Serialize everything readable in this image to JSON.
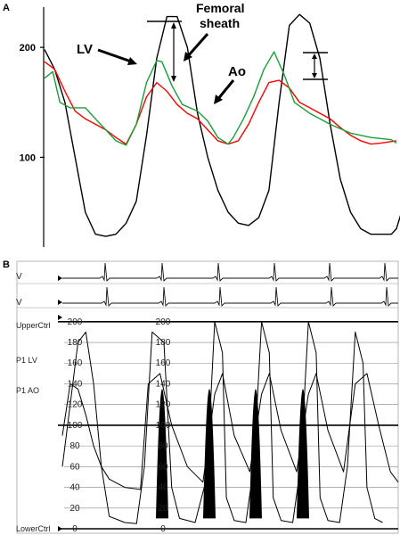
{
  "chart_data": [
    {
      "panel": "A",
      "type": "line",
      "yticks": [
        100,
        200
      ],
      "ylim": [
        20,
        235
      ],
      "series": [
        {
          "name": "LV",
          "color": "#000000",
          "values": [
            [
              0,
              198
            ],
            [
              10,
              180
            ],
            [
              20,
              150
            ],
            [
              30,
              100
            ],
            [
              40,
              50
            ],
            [
              50,
              30
            ],
            [
              60,
              28
            ],
            [
              70,
              30
            ],
            [
              80,
              40
            ],
            [
              90,
              60
            ],
            [
              100,
              120
            ],
            [
              110,
              190
            ],
            [
              120,
              228
            ],
            [
              130,
              228
            ],
            [
              140,
              200
            ],
            [
              150,
              140
            ],
            [
              160,
              100
            ],
            [
              170,
              70
            ],
            [
              180,
              50
            ],
            [
              190,
              40
            ],
            [
              200,
              38
            ],
            [
              210,
              45
            ],
            [
              220,
              70
            ],
            [
              230,
              150
            ],
            [
              240,
              220
            ],
            [
              250,
              230
            ],
            [
              260,
              222
            ],
            [
              270,
              190
            ],
            [
              280,
              130
            ],
            [
              290,
              80
            ],
            [
              300,
              50
            ],
            [
              310,
              35
            ],
            [
              320,
              30
            ],
            [
              330,
              30
            ],
            [
              340,
              30
            ],
            [
              345,
              35
            ],
            [
              350,
              50
            ]
          ]
        },
        {
          "name": "Ao",
          "color": "#ff0000",
          "values": [
            [
              0,
              187
            ],
            [
              10,
              180
            ],
            [
              20,
              160
            ],
            [
              30,
              142
            ],
            [
              40,
              135
            ],
            [
              50,
              130
            ],
            [
              60,
              125
            ],
            [
              70,
              118
            ],
            [
              80,
              112
            ],
            [
              90,
              130
            ],
            [
              100,
              155
            ],
            [
              110,
              168
            ],
            [
              120,
              160
            ],
            [
              130,
              148
            ],
            [
              140,
              140
            ],
            [
              150,
              135
            ],
            [
              160,
              125
            ],
            [
              170,
              115
            ],
            [
              180,
              112
            ],
            [
              190,
              115
            ],
            [
              200,
              130
            ],
            [
              210,
              150
            ],
            [
              220,
              168
            ],
            [
              230,
              170
            ],
            [
              240,
              163
            ],
            [
              250,
              150
            ],
            [
              260,
              145
            ],
            [
              270,
              140
            ],
            [
              280,
              135
            ],
            [
              290,
              127
            ],
            [
              300,
              120
            ],
            [
              310,
              115
            ],
            [
              320,
              112
            ],
            [
              330,
              113
            ],
            [
              345,
              115
            ]
          ]
        },
        {
          "name": "Femoral sheath",
          "color": "#1a9e3a",
          "values": [
            [
              0,
              172
            ],
            [
              8,
              178
            ],
            [
              15,
              150
            ],
            [
              25,
              145
            ],
            [
              40,
              145
            ],
            [
              50,
              135
            ],
            [
              60,
              125
            ],
            [
              70,
              115
            ],
            [
              80,
              111
            ],
            [
              90,
              130
            ],
            [
              100,
              168
            ],
            [
              110,
              188
            ],
            [
              115,
              187
            ],
            [
              125,
              165
            ],
            [
              135,
              148
            ],
            [
              150,
              142
            ],
            [
              160,
              133
            ],
            [
              170,
              118
            ],
            [
              180,
              112
            ],
            [
              185,
              118
            ],
            [
              195,
              135
            ],
            [
              205,
              155
            ],
            [
              215,
              180
            ],
            [
              225,
              196
            ],
            [
              235,
              175
            ],
            [
              245,
              150
            ],
            [
              260,
              140
            ],
            [
              280,
              130
            ],
            [
              300,
              122
            ],
            [
              320,
              118
            ],
            [
              340,
              116
            ],
            [
              345,
              113
            ]
          ]
        }
      ],
      "annotations": [
        "LV",
        "Femoral sheath",
        "Ao"
      ]
    },
    {
      "panel": "B",
      "type": "line",
      "yticks": [
        0,
        20,
        40,
        60,
        80,
        100,
        120,
        140,
        160,
        180,
        200
      ],
      "ylim": [
        0,
        205
      ],
      "channel_labels": [
        "V",
        "V",
        "UpperCtrl",
        "P1 LV",
        "P1 AO",
        "LowerCtrl"
      ],
      "series": [
        {
          "name": "LV",
          "color": "#000000",
          "values": [
            [
              0,
              60
            ],
            [
              10,
              120
            ],
            [
              20,
              180
            ],
            [
              30,
              190
            ],
            [
              40,
              140
            ],
            [
              50,
              60
            ],
            [
              60,
              12
            ],
            [
              80,
              6
            ],
            [
              95,
              5
            ],
            [
              105,
              60
            ],
            [
              115,
              190
            ],
            [
              130,
              180
            ],
            [
              140,
              40
            ],
            [
              150,
              10
            ],
            [
              170,
              6
            ],
            [
              185,
              50
            ],
            [
              195,
              200
            ],
            [
              205,
              170
            ],
            [
              210,
              30
            ],
            [
              220,
              8
            ],
            [
              235,
              6
            ],
            [
              245,
              60
            ],
            [
              255,
              200
            ],
            [
              265,
              170
            ],
            [
              270,
              30
            ],
            [
              280,
              8
            ],
            [
              295,
              6
            ],
            [
              305,
              60
            ],
            [
              315,
              200
            ],
            [
              325,
              170
            ],
            [
              330,
              30
            ],
            [
              340,
              8
            ],
            [
              355,
              6
            ],
            [
              365,
              60
            ],
            [
              375,
              190
            ],
            [
              385,
              160
            ],
            [
              390,
              40
            ],
            [
              400,
              10
            ],
            [
              410,
              6
            ]
          ]
        },
        {
          "name": "AO",
          "color": "#000000",
          "values": [
            [
              0,
              90
            ],
            [
              10,
              140
            ],
            [
              20,
              135
            ],
            [
              30,
              110
            ],
            [
              40,
              80
            ],
            [
              50,
              60
            ],
            [
              60,
              48
            ],
            [
              80,
              40
            ],
            [
              100,
              38
            ],
            [
              110,
              140
            ],
            [
              125,
              150
            ],
            [
              140,
              100
            ],
            [
              160,
              60
            ],
            [
              180,
              45
            ],
            [
              195,
              130
            ],
            [
              205,
              150
            ],
            [
              220,
              90
            ],
            [
              240,
              55
            ],
            [
              255,
              130
            ],
            [
              265,
              150
            ],
            [
              280,
              95
            ],
            [
              300,
              55
            ],
            [
              315,
              130
            ],
            [
              325,
              150
            ],
            [
              340,
              95
            ],
            [
              360,
              55
            ],
            [
              375,
              140
            ],
            [
              390,
              150
            ],
            [
              405,
              100
            ],
            [
              420,
              55
            ],
            [
              430,
              45
            ]
          ]
        }
      ]
    }
  ],
  "panel_a": {
    "label": "A",
    "annotations": {
      "lv": "LV",
      "femoral_line1": "Femoral",
      "femoral_line2": "sheath",
      "ao": "Ao"
    }
  },
  "panel_b": {
    "label": "B"
  }
}
